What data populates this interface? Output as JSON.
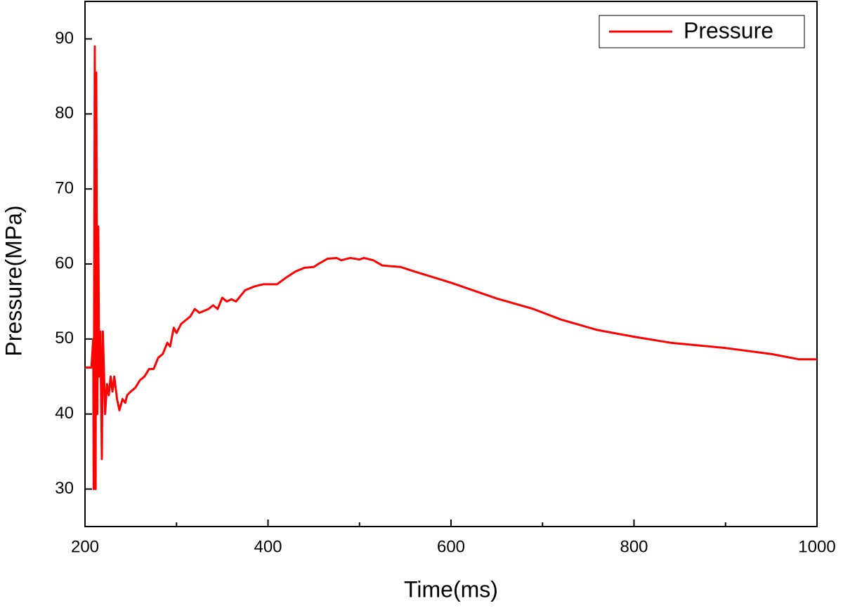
{
  "chart_data": {
    "type": "line",
    "x_label": "Time(ms)",
    "y_label": "Pressure(MPa)",
    "x": [
      200,
      207,
      209,
      209.5,
      210.7,
      211.6,
      212.3,
      213.5,
      214.5,
      215.5,
      216.8,
      218.4,
      219.5,
      222,
      224,
      226,
      228,
      230,
      232,
      235,
      237.6,
      241,
      244,
      246,
      250,
      255,
      260,
      265,
      270,
      275,
      280,
      285,
      290,
      293,
      297,
      300,
      305,
      310,
      315,
      320,
      325,
      335,
      340,
      345,
      350,
      355,
      360,
      365,
      375,
      385,
      395,
      410,
      420,
      430,
      440,
      450,
      455,
      465,
      475,
      480,
      490,
      500,
      505,
      515,
      525,
      535,
      545,
      560,
      600,
      650,
      690,
      720,
      760,
      800,
      840,
      900,
      950,
      980,
      1000
    ],
    "series": [
      {
        "name": "Pressure",
        "color": "#ff0000",
        "values": [
          46.2,
          46.2,
          50,
          30,
          89,
          30,
          85.5,
          40,
          65,
          45,
          51,
          34,
          51,
          40,
          44,
          42.5,
          45,
          43,
          45,
          42,
          40.5,
          42,
          41.5,
          42.5,
          43,
          43.5,
          44.5,
          45,
          46,
          46,
          47.5,
          48,
          49.5,
          49,
          51.5,
          50.8,
          52,
          52.5,
          53,
          54,
          53.5,
          54,
          54.5,
          54,
          55.5,
          55,
          55.3,
          55,
          56.5,
          57,
          57.3,
          57.3,
          58.2,
          59,
          59.5,
          59.6,
          60,
          60.7,
          60.8,
          60.5,
          60.8,
          60.6,
          60.8,
          60.5,
          59.8,
          59.7,
          59.6,
          59,
          57.5,
          55.4,
          54,
          52.6,
          51.2,
          50.3,
          49.5,
          48.8,
          48,
          47.3,
          47.3
        ]
      }
    ],
    "xlim": [
      200,
      1000
    ],
    "xticks": [
      200,
      400,
      600,
      800,
      1000
    ],
    "xminorticks": [
      300,
      500,
      700,
      900
    ],
    "ylim": [
      25,
      95
    ],
    "yticks": [
      30,
      40,
      50,
      60,
      70,
      80,
      90
    ],
    "legend": "upper right",
    "grid": false
  }
}
